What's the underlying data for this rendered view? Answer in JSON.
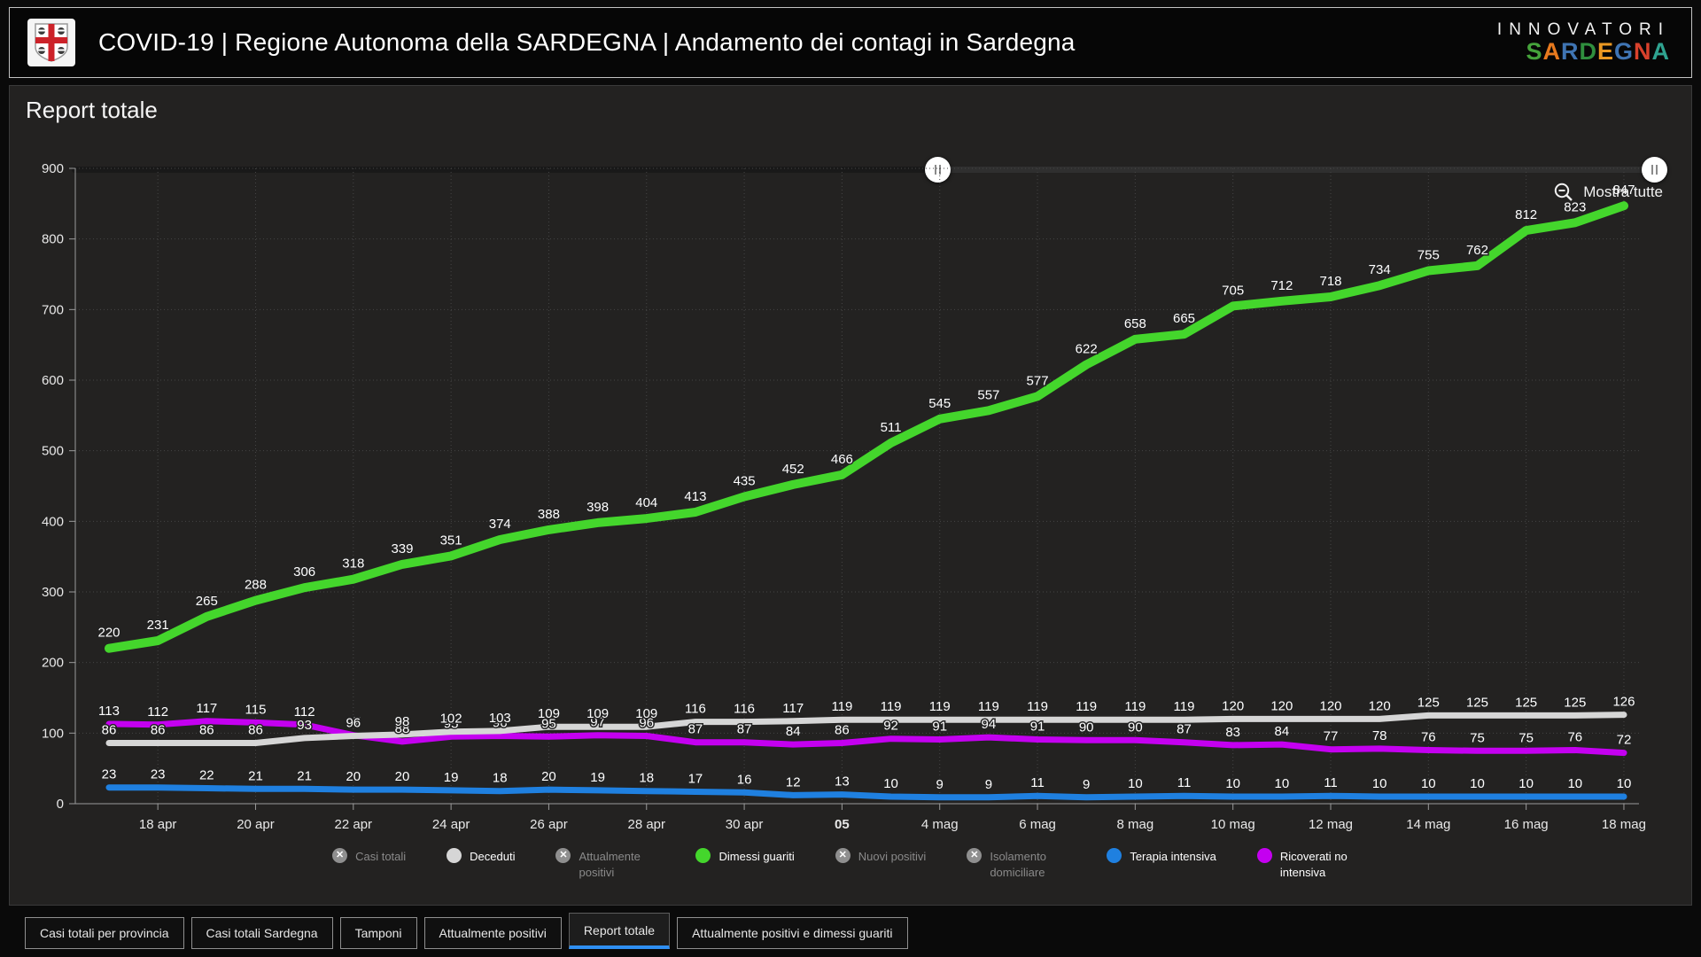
{
  "header": {
    "title": "COVID-19 | Regione Autonoma della SARDEGNA | Andamento dei contagi in Sardegna",
    "logo": "sardegna-coat-of-arms",
    "brand_top": "INNOVATORI",
    "brand_bottom": "SARDEGNA",
    "brand_letters": [
      {
        "ch": "S",
        "color": "#45a33b"
      },
      {
        "ch": "A",
        "color": "#e87a1e"
      },
      {
        "ch": "R",
        "color": "#3f74b3"
      },
      {
        "ch": "D",
        "color": "#2f8f3e"
      },
      {
        "ch": "E",
        "color": "#eb9822"
      },
      {
        "ch": "G",
        "color": "#3f74b3"
      },
      {
        "ch": "N",
        "color": "#d9412c"
      },
      {
        "ch": "A",
        "color": "#2fa390"
      }
    ]
  },
  "panel": {
    "title": "Report totale",
    "show_all_label": "Mostra tutte"
  },
  "slider": {
    "left_handle_pct": 54.3,
    "right_handle_pct": 99.2
  },
  "chart_data": {
    "type": "line",
    "title": "Report totale",
    "n_points": 32,
    "ylim": [
      0,
      900
    ],
    "y_ticks": [
      0,
      100,
      200,
      300,
      400,
      500,
      600,
      700,
      800,
      900
    ],
    "x_ticks": [
      {
        "index": 1,
        "label": "18 apr",
        "bold": false
      },
      {
        "index": 3,
        "label": "20 apr",
        "bold": false
      },
      {
        "index": 5,
        "label": "22 apr",
        "bold": false
      },
      {
        "index": 7,
        "label": "24 apr",
        "bold": false
      },
      {
        "index": 9,
        "label": "26 apr",
        "bold": false
      },
      {
        "index": 11,
        "label": "28 apr",
        "bold": false
      },
      {
        "index": 13,
        "label": "30 apr",
        "bold": false
      },
      {
        "index": 15,
        "label": "05",
        "bold": true
      },
      {
        "index": 17,
        "label": "4 mag",
        "bold": false
      },
      {
        "index": 19,
        "label": "6 mag",
        "bold": false
      },
      {
        "index": 21,
        "label": "8 mag",
        "bold": false
      },
      {
        "index": 23,
        "label": "10 mag",
        "bold": false
      },
      {
        "index": 25,
        "label": "12 mag",
        "bold": false
      },
      {
        "index": 27,
        "label": "14 mag",
        "bold": false
      },
      {
        "index": 29,
        "label": "16 mag",
        "bold": false
      },
      {
        "index": 31,
        "label": "18 mag",
        "bold": false
      }
    ],
    "grid": "dotted",
    "legend_position": "bottom",
    "series": [
      {
        "name": "Ricoverati no intensiva",
        "color": "#c400f0",
        "values": [
          113,
          112,
          117,
          115,
          112,
          97,
          88,
          95,
          96,
          95,
          97,
          96,
          87,
          87,
          84,
          86,
          92,
          91,
          94,
          91,
          90,
          90,
          87,
          83,
          84,
          77,
          78,
          76,
          75,
          75,
          76,
          72
        ]
      },
      {
        "name": "Deceduti",
        "color": "#d6d6d6",
        "values": [
          86,
          86,
          86,
          86,
          93,
          96,
          98,
          102,
          103,
          109,
          109,
          109,
          116,
          116,
          117,
          119,
          119,
          119,
          119,
          119,
          119,
          119,
          119,
          120,
          120,
          120,
          120,
          125,
          125,
          125,
          125,
          126
        ]
      },
      {
        "name": "Terapia intensiva",
        "color": "#1f80e0",
        "values": [
          23,
          23,
          22,
          21,
          21,
          20,
          20,
          19,
          18,
          20,
          19,
          18,
          17,
          16,
          12,
          13,
          10,
          9,
          9,
          11,
          9,
          10,
          11,
          10,
          10,
          11,
          10,
          10,
          10,
          10,
          10,
          10
        ]
      },
      {
        "name": "Dimessi guariti",
        "color": "#44d62c",
        "values": [
          220,
          231,
          265,
          288,
          306,
          318,
          339,
          351,
          374,
          388,
          398,
          404,
          413,
          435,
          452,
          466,
          511,
          545,
          557,
          577,
          622,
          658,
          665,
          705,
          712,
          718,
          734,
          755,
          762,
          812,
          823,
          847
        ]
      }
    ]
  },
  "legend": {
    "items": [
      {
        "label": "Casi totali",
        "disabled": true,
        "color": "#8f8f8f",
        "wrap": "none"
      },
      {
        "label": "Deceduti",
        "disabled": false,
        "color": "#d6d6d6",
        "wrap": "none"
      },
      {
        "label": "Attualmente positivi",
        "disabled": true,
        "color": "#8f8f8f",
        "wrap": "narrow"
      },
      {
        "label": "Dimessi guariti",
        "disabled": false,
        "color": "#44d62c",
        "wrap": "none"
      },
      {
        "label": "Nuovi positivi",
        "disabled": true,
        "color": "#8f8f8f",
        "wrap": "none"
      },
      {
        "label": "Isolamento domiciliare",
        "disabled": true,
        "color": "#8f8f8f",
        "wrap": "narrow"
      },
      {
        "label": "Terapia intensiva",
        "disabled": false,
        "color": "#1f80e0",
        "wrap": "none"
      },
      {
        "label": "Ricoverati no intensiva",
        "disabled": false,
        "color": "#c400f0",
        "wrap": "wide"
      }
    ]
  },
  "tabs": [
    {
      "label": "Casi totali per provincia",
      "active": false
    },
    {
      "label": "Casi totali Sardegna",
      "active": false
    },
    {
      "label": "Tamponi",
      "active": false
    },
    {
      "label": "Attualmente positivi",
      "active": false
    },
    {
      "label": "Report totale",
      "active": true
    },
    {
      "label": "Attualmente positivi e dimessi guariti",
      "active": false
    }
  ]
}
